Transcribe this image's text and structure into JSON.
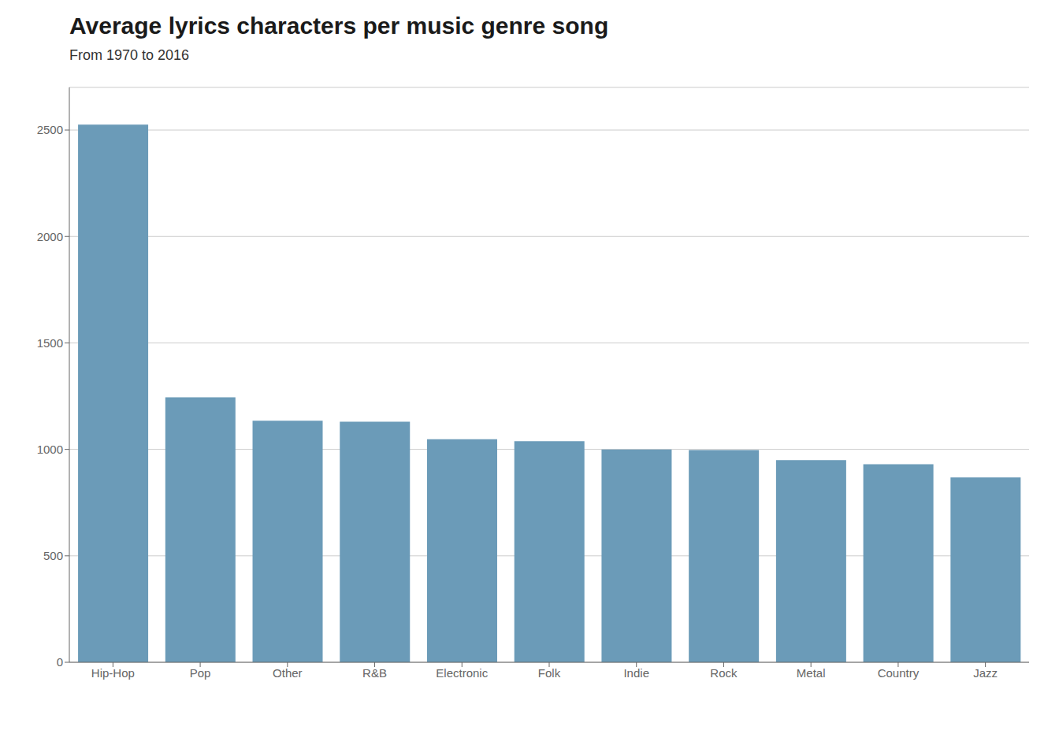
{
  "chart_data": {
    "type": "bar",
    "title": "Average lyrics characters per music genre song",
    "subtitle": "From 1970 to 2016",
    "categories": [
      "Hip-Hop",
      "Pop",
      "Other",
      "R&B",
      "Electronic",
      "Folk",
      "Indie",
      "Rock",
      "Metal",
      "Country",
      "Jazz"
    ],
    "values": [
      2525,
      1245,
      1135,
      1130,
      1048,
      1038,
      1000,
      997,
      950,
      930,
      868
    ],
    "color": "#6b9bb8",
    "ylim": [
      0,
      2700
    ],
    "yticks": [
      0,
      500,
      1000,
      1500,
      2000,
      2500
    ],
    "grid": true
  }
}
